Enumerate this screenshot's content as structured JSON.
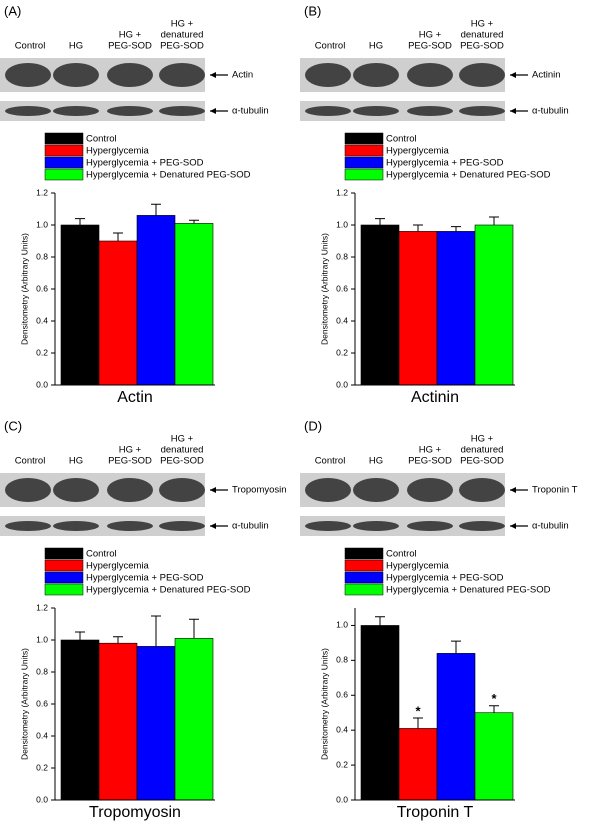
{
  "chart_data": [
    {
      "type": "bar",
      "panel": "(A)",
      "lanes": [
        "Control",
        "HG",
        [
          "HG +",
          "PEG-SOD"
        ],
        [
          "HG +",
          "denatured",
          "PEG-SOD"
        ]
      ],
      "blots": [
        "Actin",
        "α-tubulin"
      ],
      "title": "Actin",
      "y_label": "Densitometry (Arbitrary Units)",
      "categories": [
        "Control",
        "Hyperglycemia",
        "Hyperglycemia + PEG-SOD",
        "Hyperglycemia + Denatured PEG-SOD"
      ],
      "colors": [
        "#000000",
        "#ff0000",
        "#0000ff",
        "#00ff00"
      ],
      "values": [
        1.0,
        0.9,
        1.06,
        1.01
      ],
      "errors": [
        0.04,
        0.05,
        0.07,
        0.02
      ],
      "ylim": [
        0,
        1.2
      ],
      "yticks": [
        {
          "value": 0,
          "label": "0.0"
        },
        0.2,
        0.4,
        0.6,
        0.8,
        {
          "value": 1,
          "label": "1.0"
        },
        1.2
      ]
    },
    {
      "type": "bar",
      "panel": "(B)",
      "lanes": [
        "Control",
        "HG",
        [
          "HG +",
          "PEG-SOD"
        ],
        [
          "HG +",
          "denatured",
          "PEG-SOD"
        ]
      ],
      "blots": [
        "Actinin",
        "α-tubulin"
      ],
      "title": "Actinin",
      "y_label": "Densitometry (Arbitrary Units)",
      "categories": [
        "Control",
        "Hyperglycemia",
        "Hyperglycemia + PEG-SOD",
        "Hyperglycemia + Denatured PEG-SOD"
      ],
      "colors": [
        "#000000",
        "#ff0000",
        "#0000ff",
        "#00ff00"
      ],
      "values": [
        1.0,
        0.96,
        0.96,
        1.0
      ],
      "errors": [
        0.04,
        0.04,
        0.03,
        0.05
      ],
      "ylim": [
        0,
        1.2
      ],
      "yticks": [
        {
          "value": 0,
          "label": "0.0"
        },
        0.2,
        0.4,
        0.6,
        0.8,
        {
          "value": 1,
          "label": "1.0"
        },
        1.2
      ]
    },
    {
      "type": "bar",
      "panel": "(C)",
      "lanes": [
        "Control",
        "HG",
        [
          "HG +",
          "PEG-SOD"
        ],
        [
          "HG +",
          "denatured",
          "PEG-SOD"
        ]
      ],
      "blots": [
        "Tropomyosin",
        "α-tubulin"
      ],
      "title": "Tropomyosin",
      "y_label": "Densitometry (Arbitrary Units)",
      "categories": [
        "Control",
        "Hyperglycemia",
        "Hyperglycemia + PEG-SOD",
        "Hyperglycemia + Denatured PEG-SOD"
      ],
      "colors": [
        "#000000",
        "#ff0000",
        "#0000ff",
        "#00ff00"
      ],
      "values": [
        1.0,
        0.98,
        0.96,
        1.01
      ],
      "errors": [
        0.05,
        0.04,
        0.19,
        0.12
      ],
      "ylim": [
        0,
        1.2
      ],
      "yticks": [
        {
          "value": 0,
          "label": "0.0"
        },
        0.2,
        0.4,
        0.6,
        0.8,
        {
          "value": 1,
          "label": "1.0"
        },
        1.2
      ]
    },
    {
      "type": "bar",
      "panel": "(D)",
      "lanes": [
        "Control",
        "HG",
        [
          "HG +",
          "PEG-SOD"
        ],
        [
          "HG +",
          "denatured",
          "PEG-SOD"
        ]
      ],
      "blots": [
        "Troponin T",
        "α-tubulin"
      ],
      "title": "Troponin T",
      "y_label": "Densitometry (Arbitrary Units)",
      "categories": [
        "Control",
        "Hyperglycemia",
        "Hyperglycemia + PEG-SOD",
        "Hyperglycemia + Denatured PEG-SOD"
      ],
      "colors": [
        "#000000",
        "#ff0000",
        "#0000ff",
        "#00ff00"
      ],
      "values": [
        1.0,
        0.41,
        0.84,
        0.5
      ],
      "errors": [
        0.05,
        0.06,
        0.07,
        0.04
      ],
      "markers": [
        null,
        "*",
        null,
        "*"
      ],
      "ylim": [
        0,
        1.1
      ],
      "yticks": [
        {
          "value": 0,
          "label": "0.0"
        },
        0.2,
        0.4,
        0.6,
        0.8,
        {
          "value": 1,
          "label": "1.0"
        }
      ]
    }
  ]
}
